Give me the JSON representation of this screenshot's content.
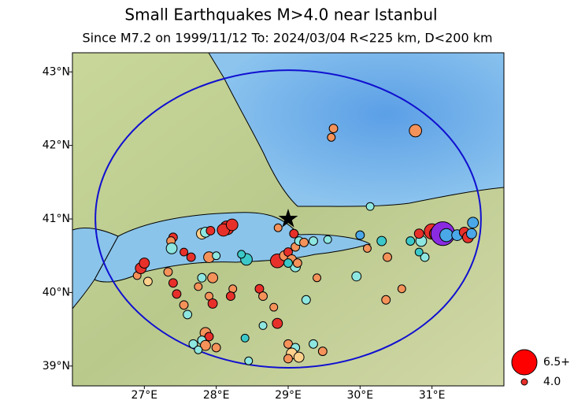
{
  "chart_data": {
    "type": "scatter",
    "title": "Small Earthquakes M>4.0 near Istanbul",
    "subtitle": "Since M7.2 on 1999/11/12  To: 2024/03/04 R<225 km, D<200 km",
    "xlim": [
      26.0,
      32.0
    ],
    "ylim": [
      38.73,
      43.26
    ],
    "xticks": [
      {
        "value": 27,
        "label": "27°E"
      },
      {
        "value": 28,
        "label": "28°E"
      },
      {
        "value": 29,
        "label": "29°E"
      },
      {
        "value": 30,
        "label": "30°E"
      },
      {
        "value": 31,
        "label": "31°E"
      }
    ],
    "yticks": [
      {
        "value": 39,
        "label": "39°N"
      },
      {
        "value": 40,
        "label": "40°N"
      },
      {
        "value": 41,
        "label": "41°N"
      },
      {
        "value": 42,
        "label": "42°N"
      },
      {
        "value": 43,
        "label": "43°N"
      }
    ],
    "epicenter": {
      "x": 29.0,
      "y": 41.0
    },
    "radius_km": 225,
    "x": [
      29.63,
      29.6,
      30.77,
      30.14,
      28.15,
      28.1,
      28.22,
      27.8,
      27.85,
      27.92,
      27.4,
      27.37,
      27.38,
      27.55,
      27.65,
      27.9,
      28.0,
      28.42,
      28.35,
      28.85,
      28.95,
      29.0,
      29.05,
      29.1,
      29.15,
      29.22,
      29.08,
      29.35,
      29.55,
      28.86,
      29.1,
      29.0,
      29.13,
      30.0,
      30.3,
      30.1,
      29.95,
      30.38,
      30.36,
      30.58,
      30.7,
      30.85,
      30.82,
      31.0,
      31.05,
      31.15,
      31.2,
      31.35,
      31.45,
      31.5,
      31.55,
      31.57,
      30.9,
      30.82,
      26.9,
      26.95,
      27.0,
      27.05,
      27.33,
      27.4,
      27.45,
      27.55,
      27.6,
      27.75,
      27.95,
      27.8,
      27.9,
      27.95,
      28.23,
      28.6,
      28.65,
      28.8,
      28.85,
      28.65,
      28.4,
      27.85,
      27.9,
      27.8,
      27.68,
      27.85,
      28.0,
      27.75,
      29.0,
      29.1,
      29.05,
      29.15,
      29.0,
      29.35,
      29.48,
      28.45,
      29.25,
      29.4,
      28.2
    ],
    "y": [
      42.23,
      42.11,
      42.2,
      41.17,
      40.88,
      40.85,
      40.92,
      40.8,
      40.82,
      40.84,
      40.75,
      40.7,
      40.6,
      40.55,
      40.48,
      40.48,
      40.5,
      40.45,
      40.52,
      40.43,
      40.5,
      40.55,
      40.45,
      40.62,
      40.7,
      40.68,
      40.8,
      40.7,
      40.72,
      40.88,
      40.35,
      40.4,
      40.4,
      40.78,
      40.7,
      40.6,
      40.22,
      40.48,
      39.9,
      40.05,
      40.7,
      40.7,
      40.8,
      40.83,
      40.8,
      40.8,
      40.78,
      40.78,
      40.82,
      40.75,
      40.8,
      40.95,
      40.48,
      40.55,
      40.23,
      40.33,
      40.4,
      40.15,
      40.28,
      40.13,
      39.98,
      39.83,
      39.7,
      40.08,
      40.2,
      40.2,
      39.95,
      39.85,
      40.05,
      40.05,
      39.95,
      39.8,
      39.58,
      39.55,
      39.38,
      39.45,
      39.4,
      39.35,
      39.3,
      39.28,
      39.25,
      39.22,
      39.3,
      39.25,
      39.17,
      39.12,
      39.1,
      39.3,
      39.2,
      39.07,
      39.9,
      40.2,
      39.95
    ],
    "sizes": [
      4.3,
      4.2,
      4.8,
      4.2,
      5.0,
      4.8,
      4.7,
      4.6,
      4.5,
      4.3,
      4.3,
      4.3,
      4.6,
      4.2,
      4.3,
      4.6,
      4.2,
      4.7,
      4.2,
      5.0,
      4.5,
      4.3,
      4.4,
      4.3,
      4.3,
      4.3,
      4.3,
      4.3,
      4.2,
      4.2,
      4.5,
      4.3,
      4.3,
      4.3,
      4.4,
      4.2,
      4.4,
      4.3,
      4.3,
      4.2,
      4.3,
      4.6,
      4.4,
      5.2,
      4.8,
      6.3,
      4.9,
      4.6,
      4.5,
      4.6,
      4.5,
      4.6,
      4.3,
      4.2,
      4.2,
      4.6,
      4.5,
      4.3,
      4.3,
      4.3,
      4.3,
      4.3,
      4.3,
      4.2,
      4.5,
      4.3,
      4.2,
      4.4,
      4.2,
      4.3,
      4.3,
      4.2,
      4.5,
      4.2,
      4.2,
      4.6,
      4.3,
      4.3,
      4.3,
      4.5,
      4.3,
      4.2,
      4.3,
      4.3,
      4.6,
      4.5,
      4.3,
      4.3,
      4.3,
      4.2,
      4.3,
      4.2,
      4.3
    ],
    "colors": [
      "#f4925a",
      "#f4925a",
      "#f4925a",
      "#8ee6e0",
      "#e8302a",
      "#e8302a",
      "#e8302a",
      "#fdd18c",
      "#8ee6e0",
      "#e8302a",
      "#e8302a",
      "#f4925a",
      "#8ee6e0",
      "#e8302a",
      "#e8302a",
      "#f4925a",
      "#8ee6e0",
      "#3cc8c8",
      "#3cc8c8",
      "#e8302a",
      "#f4925a",
      "#e8302a",
      "#f4925a",
      "#f4925a",
      "#8ee6e0",
      "#f4925a",
      "#e8302a",
      "#8ee6e0",
      "#8ee6e0",
      "#f4925a",
      "#8ee6e0",
      "#3cc8c8",
      "#f4925a",
      "#4aa8e8",
      "#3cc8c8",
      "#f4925a",
      "#8ee6e0",
      "#f4925a",
      "#f4925a",
      "#f4925a",
      "#3cc8c8",
      "#8ee6e0",
      "#e8302a",
      "#e8302a",
      "#e8302a",
      "#8a2be2",
      "#4aa8e8",
      "#4aa8e8",
      "#e8302a",
      "#e8302a",
      "#4aa8e8",
      "#4aa8e8",
      "#8ee6e0",
      "#3cc8c8",
      "#f4925a",
      "#e8302a",
      "#e8302a",
      "#fdd18c",
      "#f4925a",
      "#e8302a",
      "#e8302a",
      "#f4925a",
      "#8ee6e0",
      "#f4925a",
      "#f4925a",
      "#8ee6e0",
      "#f4925a",
      "#e8302a",
      "#f4925a",
      "#e8302a",
      "#f4925a",
      "#f4925a",
      "#e8302a",
      "#8ee6e0",
      "#3cc8c8",
      "#f4925a",
      "#e8302a",
      "#8ee6e0",
      "#8ee6e0",
      "#f4925a",
      "#f4925a",
      "#8ee6e0",
      "#f4925a",
      "#8ee6e0",
      "#fdd18c",
      "#fdd18c",
      "#f4925a",
      "#8ee6e0",
      "#f4925a",
      "#8ee6e0",
      "#8ee6e0",
      "#f4925a",
      "#e8302a"
    ],
    "legend": [
      {
        "label": "6.5+",
        "size": 6.5,
        "color": "#ff0000"
      },
      {
        "label": "4.0",
        "size": 4.0,
        "color": "#e8302a"
      }
    ],
    "circle_color": "#1010d0"
  }
}
